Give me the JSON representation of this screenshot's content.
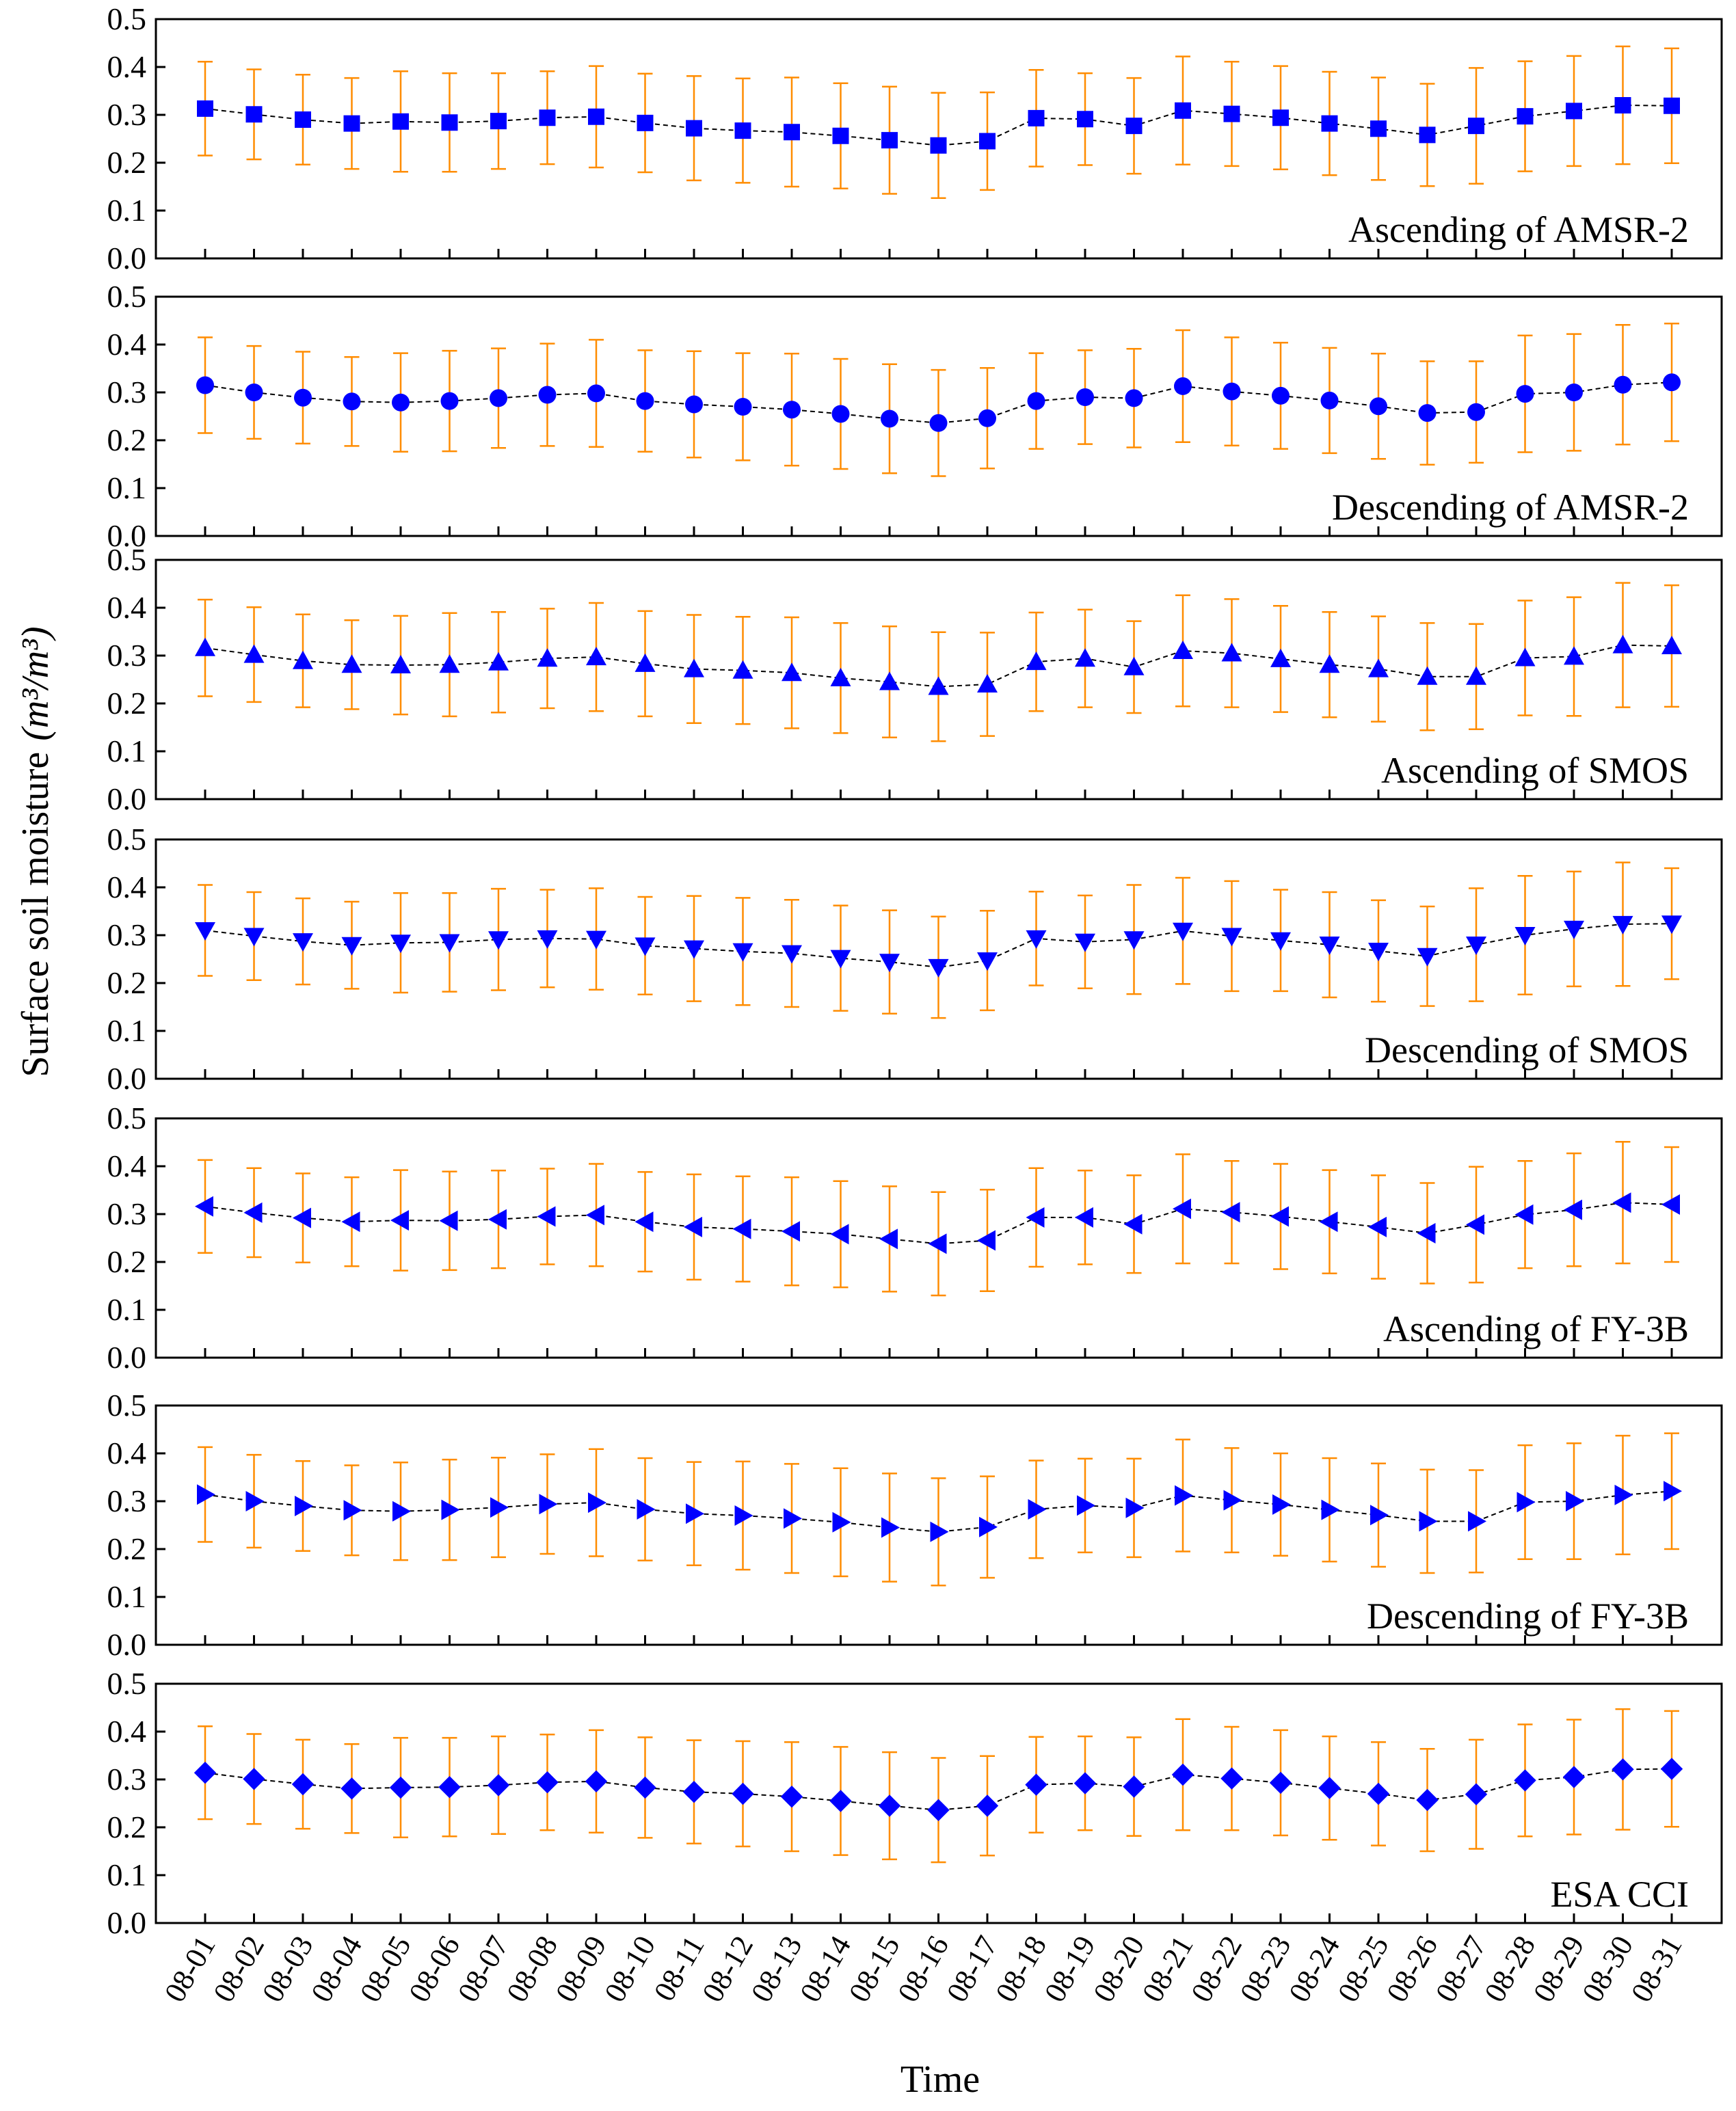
{
  "chart_data": {
    "type": "line",
    "title": "",
    "xlabel": "Time",
    "ylabel": "Surface soil moisture",
    "ylabel_unit": "(m³/m³)",
    "ylim": [
      0,
      0.5
    ],
    "yticks": [
      "0.0",
      "0.1",
      "0.2",
      "0.3",
      "0.4",
      "0.5"
    ],
    "categories": [
      "08-01",
      "08-02",
      "08-03",
      "08-04",
      "08-05",
      "08-06",
      "08-07",
      "08-08",
      "08-09",
      "08-10",
      "08-11",
      "08-12",
      "08-13",
      "08-14",
      "08-15",
      "08-16",
      "08-17",
      "08-18",
      "08-19",
      "08-20",
      "08-21",
      "08-22",
      "08-23",
      "08-24",
      "08-25",
      "08-26",
      "08-27",
      "08-28",
      "08-29",
      "08-30",
      "08-31"
    ],
    "colors": {
      "marker": "#0000ff",
      "error_bar": "#ff8c00",
      "line": "#000000"
    },
    "series": [
      {
        "name": "Ascending of AMSR-2",
        "marker": "square",
        "values": [
          0.313,
          0.301,
          0.29,
          0.282,
          0.286,
          0.284,
          0.287,
          0.294,
          0.296,
          0.283,
          0.272,
          0.267,
          0.264,
          0.256,
          0.247,
          0.236,
          0.245,
          0.293,
          0.291,
          0.277,
          0.309,
          0.302,
          0.294,
          0.282,
          0.271,
          0.258,
          0.277,
          0.297,
          0.308,
          0.32,
          0.319
        ],
        "errors": [
          0.098,
          0.094,
          0.094,
          0.095,
          0.105,
          0.103,
          0.1,
          0.097,
          0.106,
          0.103,
          0.109,
          0.109,
          0.114,
          0.11,
          0.112,
          0.11,
          0.102,
          0.101,
          0.096,
          0.1,
          0.113,
          0.109,
          0.108,
          0.108,
          0.107,
          0.107,
          0.121,
          0.115,
          0.115,
          0.123,
          0.12
        ]
      },
      {
        "name": "Descending of AMSR-2",
        "marker": "circle",
        "values": [
          0.315,
          0.3,
          0.289,
          0.281,
          0.279,
          0.282,
          0.288,
          0.295,
          0.298,
          0.282,
          0.275,
          0.27,
          0.264,
          0.255,
          0.245,
          0.236,
          0.246,
          0.282,
          0.29,
          0.288,
          0.313,
          0.302,
          0.293,
          0.283,
          0.271,
          0.257,
          0.259,
          0.297,
          0.3,
          0.316,
          0.321
        ],
        "errors": [
          0.1,
          0.097,
          0.096,
          0.093,
          0.103,
          0.105,
          0.104,
          0.107,
          0.112,
          0.106,
          0.111,
          0.112,
          0.117,
          0.115,
          0.114,
          0.111,
          0.105,
          0.1,
          0.098,
          0.103,
          0.117,
          0.113,
          0.111,
          0.11,
          0.11,
          0.108,
          0.106,
          0.122,
          0.122,
          0.125,
          0.123
        ]
      },
      {
        "name": "Ascending of SMOS",
        "marker": "triangle-up",
        "values": [
          0.316,
          0.302,
          0.289,
          0.281,
          0.28,
          0.281,
          0.286,
          0.294,
          0.297,
          0.283,
          0.272,
          0.269,
          0.264,
          0.253,
          0.245,
          0.235,
          0.24,
          0.287,
          0.294,
          0.276,
          0.31,
          0.305,
          0.293,
          0.281,
          0.272,
          0.256,
          0.256,
          0.295,
          0.298,
          0.322,
          0.32
        ],
        "errors": [
          0.101,
          0.099,
          0.097,
          0.093,
          0.103,
          0.108,
          0.105,
          0.104,
          0.113,
          0.11,
          0.113,
          0.112,
          0.116,
          0.115,
          0.116,
          0.114,
          0.108,
          0.103,
          0.102,
          0.096,
          0.116,
          0.113,
          0.111,
          0.11,
          0.11,
          0.112,
          0.11,
          0.12,
          0.124,
          0.13,
          0.127
        ]
      },
      {
        "name": "Descending of SMOS",
        "marker": "triangle-down",
        "values": [
          0.31,
          0.298,
          0.287,
          0.279,
          0.284,
          0.285,
          0.291,
          0.293,
          0.292,
          0.278,
          0.272,
          0.266,
          0.262,
          0.252,
          0.244,
          0.233,
          0.247,
          0.293,
          0.286,
          0.291,
          0.309,
          0.298,
          0.289,
          0.28,
          0.267,
          0.256,
          0.28,
          0.3,
          0.313,
          0.323,
          0.324
        ],
        "errors": [
          0.095,
          0.092,
          0.09,
          0.091,
          0.104,
          0.103,
          0.106,
          0.102,
          0.106,
          0.102,
          0.11,
          0.112,
          0.112,
          0.11,
          0.108,
          0.106,
          0.104,
          0.098,
          0.097,
          0.114,
          0.111,
          0.115,
          0.106,
          0.11,
          0.106,
          0.104,
          0.118,
          0.124,
          0.12,
          0.129,
          0.116
        ]
      },
      {
        "name": "Ascending of FY-3B",
        "marker": "triangle-left",
        "values": [
          0.316,
          0.303,
          0.292,
          0.284,
          0.287,
          0.286,
          0.289,
          0.295,
          0.298,
          0.284,
          0.273,
          0.269,
          0.264,
          0.258,
          0.248,
          0.238,
          0.245,
          0.293,
          0.293,
          0.279,
          0.311,
          0.304,
          0.295,
          0.284,
          0.273,
          0.26,
          0.278,
          0.299,
          0.309,
          0.324,
          0.32
        ],
        "errors": [
          0.097,
          0.093,
          0.093,
          0.093,
          0.105,
          0.103,
          0.102,
          0.1,
          0.107,
          0.104,
          0.11,
          0.11,
          0.113,
          0.111,
          0.11,
          0.108,
          0.106,
          0.103,
          0.098,
          0.102,
          0.114,
          0.107,
          0.11,
          0.108,
          0.108,
          0.105,
          0.121,
          0.112,
          0.118,
          0.127,
          0.12
        ]
      },
      {
        "name": "Descending of FY-3B",
        "marker": "triangle-right",
        "values": [
          0.314,
          0.3,
          0.29,
          0.281,
          0.279,
          0.282,
          0.287,
          0.294,
          0.297,
          0.283,
          0.274,
          0.27,
          0.264,
          0.256,
          0.245,
          0.236,
          0.246,
          0.283,
          0.291,
          0.286,
          0.312,
          0.302,
          0.293,
          0.282,
          0.271,
          0.258,
          0.258,
          0.298,
          0.3,
          0.313,
          0.321
        ],
        "errors": [
          0.099,
          0.097,
          0.094,
          0.094,
          0.102,
          0.105,
          0.104,
          0.104,
          0.112,
          0.107,
          0.108,
          0.113,
          0.114,
          0.113,
          0.113,
          0.112,
          0.106,
          0.102,
          0.098,
          0.103,
          0.117,
          0.109,
          0.107,
          0.108,
          0.108,
          0.108,
          0.107,
          0.119,
          0.121,
          0.124,
          0.121
        ]
      },
      {
        "name": "ESA CCI",
        "marker": "diamond",
        "values": [
          0.314,
          0.301,
          0.29,
          0.281,
          0.283,
          0.284,
          0.288,
          0.294,
          0.296,
          0.283,
          0.274,
          0.27,
          0.264,
          0.255,
          0.245,
          0.236,
          0.245,
          0.289,
          0.292,
          0.285,
          0.31,
          0.302,
          0.293,
          0.282,
          0.27,
          0.257,
          0.269,
          0.298,
          0.305,
          0.321,
          0.322
        ],
        "errors": [
          0.097,
          0.094,
          0.093,
          0.093,
          0.104,
          0.103,
          0.102,
          0.1,
          0.107,
          0.105,
          0.108,
          0.11,
          0.114,
          0.113,
          0.112,
          0.109,
          0.104,
          0.1,
          0.098,
          0.103,
          0.116,
          0.108,
          0.11,
          0.108,
          0.108,
          0.107,
          0.114,
          0.117,
          0.12,
          0.126,
          0.121
        ]
      }
    ]
  }
}
